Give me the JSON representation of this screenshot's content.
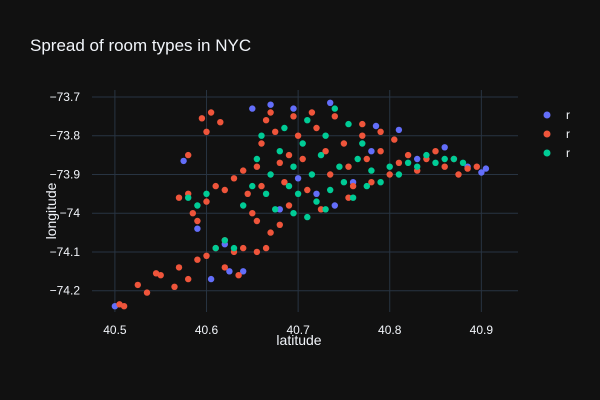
{
  "chart_data": {
    "type": "scatter",
    "title": "Spread of room types in NYC",
    "xlabel": "latitude",
    "ylabel": "longitude",
    "xlim": [
      40.475,
      40.94
    ],
    "ylim": [
      -74.255,
      -73.682
    ],
    "x_ticks": [
      "40.5",
      "40.6",
      "40.7",
      "40.8",
      "40.9"
    ],
    "x_tick_values": [
      40.5,
      40.6,
      40.7,
      40.8,
      40.9
    ],
    "y_ticks": [
      "−73.7",
      "−73.8",
      "−73.9",
      "−74",
      "−74.1",
      "−74.2"
    ],
    "y_tick_values": [
      -73.7,
      -73.8,
      -73.9,
      -74.0,
      -74.1,
      -74.2
    ],
    "y_reversed": true,
    "grid": true,
    "legend_position": "top-right",
    "series": [
      {
        "name": "r",
        "color": "#636efa",
        "points": [
          [
            40.5,
            -74.24
          ],
          [
            40.575,
            -73.865
          ],
          [
            40.65,
            -73.73
          ],
          [
            40.67,
            -73.72
          ],
          [
            40.695,
            -73.73
          ],
          [
            40.735,
            -73.715
          ],
          [
            40.785,
            -73.775
          ],
          [
            40.81,
            -73.785
          ],
          [
            40.86,
            -73.83
          ],
          [
            40.885,
            -73.88
          ],
          [
            40.905,
            -73.885
          ],
          [
            40.9,
            -73.895
          ],
          [
            40.72,
            -73.95
          ],
          [
            40.76,
            -73.92
          ],
          [
            40.605,
            -74.17
          ],
          [
            40.625,
            -74.15
          ],
          [
            40.64,
            -74.15
          ],
          [
            40.59,
            -74.04
          ],
          [
            40.68,
            -73.99
          ],
          [
            40.74,
            -73.98
          ],
          [
            40.62,
            -74.08
          ],
          [
            40.7,
            -73.91
          ],
          [
            40.83,
            -73.86
          ],
          [
            40.78,
            -73.84
          ]
        ]
      },
      {
        "name": "r",
        "color": "#ef553b",
        "points": [
          [
            40.505,
            -74.235
          ],
          [
            40.51,
            -74.24
          ],
          [
            40.525,
            -74.185
          ],
          [
            40.535,
            -74.205
          ],
          [
            40.545,
            -74.155
          ],
          [
            40.55,
            -74.16
          ],
          [
            40.565,
            -74.19
          ],
          [
            40.57,
            -74.14
          ],
          [
            40.58,
            -74.17
          ],
          [
            40.59,
            -74.12
          ],
          [
            40.6,
            -74.11
          ],
          [
            40.61,
            -74.09
          ],
          [
            40.62,
            -74.14
          ],
          [
            40.63,
            -74.1
          ],
          [
            40.64,
            -74.09
          ],
          [
            40.655,
            -74.1
          ],
          [
            40.665,
            -74.09
          ],
          [
            40.635,
            -74.16
          ],
          [
            40.58,
            -73.85
          ],
          [
            40.595,
            -73.755
          ],
          [
            40.605,
            -73.74
          ],
          [
            40.615,
            -73.765
          ],
          [
            40.6,
            -73.79
          ],
          [
            40.57,
            -73.96
          ],
          [
            40.58,
            -73.95
          ],
          [
            40.585,
            -74.0
          ],
          [
            40.59,
            -74.02
          ],
          [
            40.6,
            -73.97
          ],
          [
            40.61,
            -73.93
          ],
          [
            40.62,
            -73.94
          ],
          [
            40.63,
            -73.91
          ],
          [
            40.64,
            -73.89
          ],
          [
            40.645,
            -73.95
          ],
          [
            40.65,
            -74.0
          ],
          [
            40.655,
            -74.02
          ],
          [
            40.66,
            -73.82
          ],
          [
            40.665,
            -73.76
          ],
          [
            40.67,
            -73.74
          ],
          [
            40.675,
            -73.79
          ],
          [
            40.68,
            -73.87
          ],
          [
            40.685,
            -73.92
          ],
          [
            40.69,
            -73.98
          ],
          [
            40.695,
            -73.75
          ],
          [
            40.7,
            -73.8
          ],
          [
            40.705,
            -73.86
          ],
          [
            40.71,
            -73.94
          ],
          [
            40.715,
            -73.74
          ],
          [
            40.72,
            -73.78
          ],
          [
            40.73,
            -73.84
          ],
          [
            40.735,
            -73.9
          ],
          [
            40.74,
            -73.75
          ],
          [
            40.75,
            -73.82
          ],
          [
            40.755,
            -73.88
          ],
          [
            40.76,
            -73.93
          ],
          [
            40.77,
            -73.8
          ],
          [
            40.775,
            -73.86
          ],
          [
            40.78,
            -73.92
          ],
          [
            40.79,
            -73.84
          ],
          [
            40.8,
            -73.9
          ],
          [
            40.805,
            -73.81
          ],
          [
            40.81,
            -73.87
          ],
          [
            40.82,
            -73.85
          ],
          [
            40.83,
            -73.89
          ],
          [
            40.84,
            -73.86
          ],
          [
            40.85,
            -73.84
          ],
          [
            40.86,
            -73.88
          ],
          [
            40.87,
            -73.86
          ],
          [
            40.875,
            -73.9
          ],
          [
            40.885,
            -73.885
          ],
          [
            40.895,
            -73.88
          ],
          [
            40.77,
            -73.77
          ],
          [
            40.79,
            -73.79
          ],
          [
            40.755,
            -73.96
          ],
          [
            40.725,
            -73.99
          ],
          [
            40.69,
            -73.85
          ],
          [
            40.655,
            -73.88
          ],
          [
            40.66,
            -73.93
          ],
          [
            40.68,
            -74.03
          ],
          [
            40.67,
            -74.05
          ],
          [
            40.62,
            -74.07
          ]
        ]
      },
      {
        "name": "r",
        "color": "#00cc96",
        "points": [
          [
            40.58,
            -73.96
          ],
          [
            40.59,
            -73.98
          ],
          [
            40.6,
            -73.95
          ],
          [
            40.61,
            -74.09
          ],
          [
            40.62,
            -74.07
          ],
          [
            40.63,
            -74.09
          ],
          [
            40.64,
            -73.98
          ],
          [
            40.65,
            -73.93
          ],
          [
            40.655,
            -73.86
          ],
          [
            40.66,
            -73.8
          ],
          [
            40.665,
            -73.95
          ],
          [
            40.67,
            -73.9
          ],
          [
            40.675,
            -73.99
          ],
          [
            40.68,
            -73.84
          ],
          [
            40.685,
            -73.78
          ],
          [
            40.69,
            -73.93
          ],
          [
            40.695,
            -73.88
          ],
          [
            40.7,
            -73.95
          ],
          [
            40.705,
            -73.82
          ],
          [
            40.71,
            -73.76
          ],
          [
            40.715,
            -73.9
          ],
          [
            40.72,
            -73.97
          ],
          [
            40.725,
            -73.85
          ],
          [
            40.73,
            -73.8
          ],
          [
            40.735,
            -73.94
          ],
          [
            40.74,
            -73.73
          ],
          [
            40.745,
            -73.88
          ],
          [
            40.75,
            -73.92
          ],
          [
            40.755,
            -73.77
          ],
          [
            40.76,
            -73.96
          ],
          [
            40.765,
            -73.86
          ],
          [
            40.77,
            -73.82
          ],
          [
            40.775,
            -73.93
          ],
          [
            40.78,
            -73.89
          ],
          [
            40.79,
            -73.92
          ],
          [
            40.8,
            -73.88
          ],
          [
            40.81,
            -73.9
          ],
          [
            40.82,
            -73.87
          ],
          [
            40.83,
            -73.88
          ],
          [
            40.84,
            -73.85
          ],
          [
            40.85,
            -73.87
          ],
          [
            40.86,
            -73.86
          ],
          [
            40.87,
            -73.86
          ],
          [
            40.88,
            -73.87
          ],
          [
            40.695,
            -74.0
          ],
          [
            40.71,
            -74.01
          ],
          [
            40.73,
            -73.99
          ]
        ]
      }
    ]
  }
}
